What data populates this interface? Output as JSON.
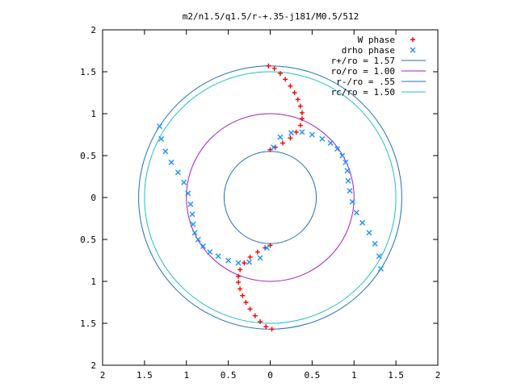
{
  "chart_data": {
    "type": "scatter",
    "title": "m2/n1.5/q1.5/r-+.35-j181/M0.5/512",
    "xlabel": "",
    "ylabel": "",
    "xlim": [
      -2,
      2
    ],
    "ylim": [
      -2,
      2
    ],
    "grid": false,
    "legend_position": "top-right",
    "x_ticks": [
      -2,
      -1.5,
      -1,
      -0.5,
      0,
      0.5,
      1,
      1.5,
      2
    ],
    "x_tick_labels": [
      "2",
      "1.5",
      "1",
      "0.5",
      "0",
      "0.5",
      "1",
      "1.5",
      "2"
    ],
    "y_ticks": [
      2,
      1.5,
      1,
      0.5,
      0,
      -0.5,
      -1,
      -1.5,
      -2
    ],
    "y_tick_labels": [
      "2",
      "1.5",
      "1",
      "0.5",
      "0",
      "0.5",
      "1",
      "1.5",
      "2"
    ],
    "series": [
      {
        "name": "W phase",
        "kind": "points",
        "marker": "+",
        "color": "#ff0000",
        "x": [
          -0.02,
          0.05,
          0.12,
          0.18,
          0.24,
          0.29,
          0.33,
          0.36,
          0.38,
          0.38,
          0.36,
          0.31,
          0.24,
          0.15,
          0.06,
          0.0,
          0.02,
          -0.05,
          -0.12,
          -0.18,
          -0.24,
          -0.29,
          -0.33,
          -0.36,
          -0.38,
          -0.38,
          -0.36,
          -0.31,
          -0.24,
          -0.15,
          -0.06,
          0.0
        ],
        "y": [
          1.57,
          1.54,
          1.48,
          1.41,
          1.33,
          1.25,
          1.17,
          1.09,
          1.01,
          0.94,
          0.86,
          0.78,
          0.71,
          0.65,
          0.6,
          0.57,
          -1.57,
          -1.54,
          -1.48,
          -1.41,
          -1.33,
          -1.25,
          -1.17,
          -1.09,
          -1.01,
          -0.94,
          -0.86,
          -0.78,
          -0.71,
          -0.65,
          -0.6,
          -0.57
        ]
      },
      {
        "name": "drho phase",
        "kind": "points",
        "marker": "x",
        "color": "#1e90ff",
        "x": [
          -1.32,
          -1.3,
          -1.25,
          -1.18,
          -1.1,
          -1.03,
          -0.98,
          -0.95,
          -0.93,
          -0.92,
          -0.9,
          -0.86,
          -0.8,
          -0.72,
          -0.62,
          -0.5,
          -0.38,
          -0.25,
          -0.12,
          -0.04,
          1.32,
          1.3,
          1.25,
          1.18,
          1.1,
          1.03,
          0.98,
          0.95,
          0.93,
          0.92,
          0.9,
          0.86,
          0.8,
          0.72,
          0.62,
          0.5,
          0.38,
          0.25,
          0.12,
          0.04
        ],
        "y": [
          0.85,
          0.7,
          0.55,
          0.42,
          0.3,
          0.18,
          0.05,
          -0.08,
          -0.2,
          -0.32,
          -0.42,
          -0.5,
          -0.58,
          -0.65,
          -0.7,
          -0.75,
          -0.78,
          -0.77,
          -0.72,
          -0.6,
          -0.85,
          -0.7,
          -0.55,
          -0.42,
          -0.3,
          -0.18,
          -0.05,
          0.08,
          0.2,
          0.32,
          0.42,
          0.5,
          0.58,
          0.65,
          0.7,
          0.75,
          0.78,
          0.77,
          0.72,
          0.6
        ]
      },
      {
        "name": "r+/ro = 1.57",
        "kind": "circle",
        "radius": 1.57,
        "color": "#1f6fbf"
      },
      {
        "name": "ro/ro = 1.00",
        "kind": "circle",
        "radius": 1.0,
        "color": "#a020c0"
      },
      {
        "name": "r-/ro = .55",
        "kind": "circle",
        "radius": 0.55,
        "color": "#1f6fbf"
      },
      {
        "name": "rc/ro = 1.50",
        "kind": "circle",
        "radius": 1.5,
        "color": "#20c0c0"
      }
    ]
  }
}
